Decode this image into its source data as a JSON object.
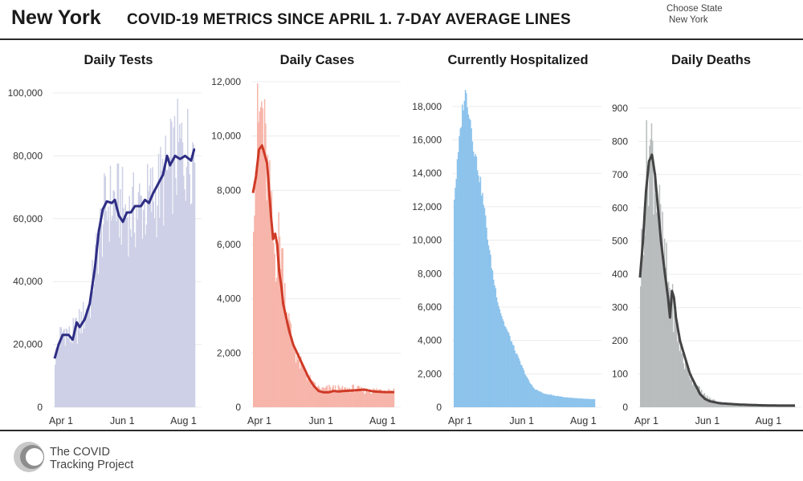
{
  "header": {
    "state": "New York",
    "subtitle": "COVID-19 METRICS SINCE APRIL 1. 7-DAY AVERAGE LINES",
    "select_label": "Choose State",
    "select_value": "New York"
  },
  "footer": {
    "logo_line1": "The COVID",
    "logo_line2": "Tracking Project"
  },
  "colors": {
    "tests_bar": "#cdd0e6",
    "tests_line": "#2e2d84",
    "cases_bar": "#f7b5aa",
    "cases_line": "#cf3a26",
    "hosp_bar": "#8cc3ec",
    "deaths_bar": "#b9bcbd",
    "deaths_line": "#444444"
  },
  "chart_data": [
    {
      "type": "bar",
      "title": "Daily Tests",
      "x_tick_labels": [
        "Apr 1",
        "Jun 1",
        "Aug 1"
      ],
      "x_tick_days": [
        0,
        61,
        122
      ],
      "days": 140,
      "ylim": [
        0,
        100000
      ],
      "y_ticks": [
        0,
        20000,
        40000,
        60000,
        80000,
        100000
      ],
      "y_tick_labels": [
        "0",
        "20,000",
        "40,000",
        "60,000",
        "80,000",
        "100,000"
      ],
      "series": [
        {
          "name": "daily",
          "kind": "bars",
          "keys": [
            [
              0,
              15000
            ],
            [
              5,
              22000
            ],
            [
              10,
              25000
            ],
            [
              15,
              22000
            ],
            [
              20,
              24000
            ],
            [
              28,
              28000
            ],
            [
              35,
              33000
            ],
            [
              40,
              45000
            ],
            [
              45,
              55000
            ],
            [
              50,
              62000
            ],
            [
              55,
              65000
            ],
            [
              60,
              66000
            ],
            [
              65,
              64000
            ],
            [
              70,
              62000
            ],
            [
              75,
              61000
            ],
            [
              80,
              62000
            ],
            [
              85,
              64000
            ],
            [
              90,
              64000
            ],
            [
              95,
              66000
            ],
            [
              100,
              67000
            ],
            [
              105,
              70000
            ],
            [
              110,
              72000
            ],
            [
              115,
              76000
            ],
            [
              120,
              79000
            ],
            [
              125,
              82000
            ],
            [
              130,
              80000
            ],
            [
              135,
              82000
            ],
            [
              139,
              83000
            ]
          ]
        },
        {
          "name": "7-day average",
          "kind": "line",
          "keys": [
            [
              0,
              15500
            ],
            [
              4,
              20000
            ],
            [
              8,
              23000
            ],
            [
              14,
              23000
            ],
            [
              18,
              21500
            ],
            [
              22,
              27000
            ],
            [
              25,
              25500
            ],
            [
              30,
              28000
            ],
            [
              35,
              33000
            ],
            [
              40,
              44000
            ],
            [
              44,
              56000
            ],
            [
              48,
              63000
            ],
            [
              52,
              65500
            ],
            [
              57,
              65000
            ],
            [
              60,
              66000
            ],
            [
              64,
              61000
            ],
            [
              68,
              59000
            ],
            [
              72,
              62000
            ],
            [
              76,
              62000
            ],
            [
              80,
              64000
            ],
            [
              86,
              64000
            ],
            [
              90,
              66000
            ],
            [
              94,
              65000
            ],
            [
              98,
              68000
            ],
            [
              103,
              71000
            ],
            [
              108,
              74000
            ],
            [
              112,
              80000
            ],
            [
              115,
              77000
            ],
            [
              120,
              80000
            ],
            [
              125,
              79000
            ],
            [
              130,
              80000
            ],
            [
              136,
              78500
            ],
            [
              139,
              82000
            ]
          ]
        }
      ]
    },
    {
      "type": "bar",
      "title": "Daily Cases",
      "x_tick_labels": [
        "Apr 1",
        "Jun 1",
        "Aug 1"
      ],
      "x_tick_days": [
        0,
        61,
        122
      ],
      "days": 140,
      "ylim": [
        0,
        12000
      ],
      "y_ticks": [
        0,
        2000,
        4000,
        6000,
        8000,
        10000,
        12000
      ],
      "y_tick_labels": [
        "0",
        "2,000",
        "4,000",
        "6,000",
        "8,000",
        "10,000",
        "12,000"
      ],
      "series": [
        {
          "name": "daily",
          "kind": "bars",
          "keys": [
            [
              0,
              7900
            ],
            [
              3,
              9500
            ],
            [
              6,
              10500
            ],
            [
              9,
              11000
            ],
            [
              11,
              9800
            ],
            [
              13,
              9000
            ],
            [
              16,
              7800
            ],
            [
              19,
              6500
            ],
            [
              22,
              5500
            ],
            [
              25,
              6200
            ],
            [
              28,
              6000
            ],
            [
              31,
              4500
            ],
            [
              34,
              3500
            ],
            [
              37,
              2800
            ],
            [
              40,
              2300
            ],
            [
              45,
              1700
            ],
            [
              50,
              1400
            ],
            [
              55,
              1100
            ],
            [
              60,
              800
            ],
            [
              65,
              700
            ],
            [
              70,
              650
            ],
            [
              75,
              700
            ],
            [
              80,
              700
            ],
            [
              90,
              650
            ],
            [
              100,
              700
            ],
            [
              110,
              600
            ],
            [
              120,
              620
            ],
            [
              130,
              650
            ],
            [
              139,
              620
            ]
          ]
        },
        {
          "name": "7-day average",
          "kind": "line",
          "keys": [
            [
              0,
              7900
            ],
            [
              3,
              8500
            ],
            [
              6,
              9500
            ],
            [
              9,
              9650
            ],
            [
              11,
              9400
            ],
            [
              14,
              9000
            ],
            [
              16,
              8000
            ],
            [
              18,
              7000
            ],
            [
              20,
              6200
            ],
            [
              22,
              6400
            ],
            [
              24,
              6000
            ],
            [
              26,
              5000
            ],
            [
              28,
              4500
            ],
            [
              30,
              3800
            ],
            [
              33,
              3300
            ],
            [
              36,
              2800
            ],
            [
              40,
              2300
            ],
            [
              45,
              1900
            ],
            [
              50,
              1500
            ],
            [
              55,
              1100
            ],
            [
              60,
              800
            ],
            [
              65,
              600
            ],
            [
              70,
              550
            ],
            [
              75,
              550
            ],
            [
              80,
              600
            ],
            [
              85,
              580
            ],
            [
              90,
              600
            ],
            [
              100,
              620
            ],
            [
              110,
              650
            ],
            [
              120,
              580
            ],
            [
              130,
              560
            ],
            [
              139,
              560
            ]
          ]
        }
      ]
    },
    {
      "type": "bar",
      "title": "Currently Hospitalized",
      "x_tick_labels": [
        "Apr 1",
        "Jun 1",
        "Aug 1"
      ],
      "x_tick_days": [
        0,
        61,
        122
      ],
      "days": 140,
      "ylim": [
        0,
        19000
      ],
      "y_ticks": [
        0,
        2000,
        4000,
        6000,
        8000,
        10000,
        12000,
        14000,
        16000,
        18000
      ],
      "y_tick_labels": [
        "0",
        "2,000",
        "4,000",
        "6,000",
        "8,000",
        "10,000",
        "12,000",
        "14,000",
        "16,000",
        "18,000"
      ],
      "series": [
        {
          "name": "daily",
          "kind": "bars",
          "keys": [
            [
              0,
              12300
            ],
            [
              2,
              13500
            ],
            [
              5,
              15500
            ],
            [
              8,
              17500
            ],
            [
              10,
              18500
            ],
            [
              12,
              18800
            ],
            [
              14,
              18200
            ],
            [
              17,
              17000
            ],
            [
              20,
              15500
            ],
            [
              25,
              14000
            ],
            [
              30,
              12000
            ],
            [
              35,
              9500
            ],
            [
              40,
              7500
            ],
            [
              45,
              6000
            ],
            [
              50,
              5000
            ],
            [
              55,
              4300
            ],
            [
              60,
              3500
            ],
            [
              65,
              2800
            ],
            [
              70,
              2100
            ],
            [
              75,
              1500
            ],
            [
              80,
              1100
            ],
            [
              90,
              800
            ],
            [
              100,
              700
            ],
            [
              110,
              600
            ],
            [
              120,
              550
            ],
            [
              130,
              500
            ],
            [
              139,
              480
            ]
          ]
        }
      ]
    },
    {
      "type": "bar",
      "title": "Daily Deaths",
      "x_tick_labels": [
        "Apr 1",
        "Jun 1",
        "Aug 1"
      ],
      "x_tick_days": [
        0,
        61,
        122
      ],
      "days": 155,
      "ylim": [
        0,
        960
      ],
      "y_ticks": [
        0,
        100,
        200,
        300,
        400,
        500,
        600,
        700,
        800,
        900
      ],
      "y_tick_labels": [
        "0",
        "100",
        "200",
        "300",
        "400",
        "500",
        "600",
        "700",
        "800",
        "900"
      ],
      "series": [
        {
          "name": "daily",
          "kind": "bars",
          "keys": [
            [
              0,
              390
            ],
            [
              3,
              550
            ],
            [
              6,
              700
            ],
            [
              9,
              790
            ],
            [
              12,
              770
            ],
            [
              15,
              700
            ],
            [
              18,
              620
            ],
            [
              21,
              520
            ],
            [
              24,
              460
            ],
            [
              27,
              400
            ],
            [
              30,
              340
            ],
            [
              33,
              300
            ],
            [
              36,
              240
            ],
            [
              39,
              200
            ],
            [
              42,
              160
            ],
            [
              45,
              130
            ],
            [
              50,
              100
            ],
            [
              55,
              70
            ],
            [
              60,
              50
            ],
            [
              65,
              35
            ],
            [
              70,
              25
            ],
            [
              80,
              15
            ],
            [
              90,
              10
            ],
            [
              100,
              10
            ],
            [
              120,
              8
            ],
            [
              140,
              6
            ],
            [
              154,
              5
            ]
          ]
        },
        {
          "name": "7-day average",
          "kind": "line",
          "keys": [
            [
              0,
              390
            ],
            [
              3,
              500
            ],
            [
              6,
              650
            ],
            [
              9,
              740
            ],
            [
              12,
              760
            ],
            [
              15,
              700
            ],
            [
              18,
              600
            ],
            [
              21,
              500
            ],
            [
              25,
              400
            ],
            [
              28,
              330
            ],
            [
              30,
              270
            ],
            [
              32,
              350
            ],
            [
              34,
              330
            ],
            [
              36,
              270
            ],
            [
              40,
              200
            ],
            [
              45,
              150
            ],
            [
              50,
              100
            ],
            [
              55,
              70
            ],
            [
              60,
              40
            ],
            [
              65,
              25
            ],
            [
              70,
              18
            ],
            [
              80,
              12
            ],
            [
              90,
              10
            ],
            [
              100,
              8
            ],
            [
              120,
              6
            ],
            [
              140,
              5
            ],
            [
              154,
              5
            ]
          ]
        }
      ]
    }
  ]
}
